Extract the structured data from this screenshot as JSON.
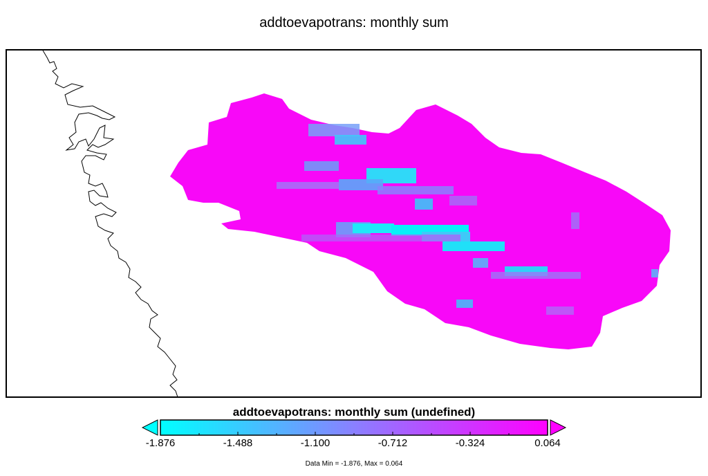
{
  "title": "addtoevapotrans: monthly sum",
  "colorbar": {
    "title": "addtoevapotrans: monthly sum (undefined)",
    "min": -1.876,
    "max": 0.064,
    "ticks": [
      "-1.876",
      "-1.488",
      "-1.100",
      "-0.712",
      "-0.324",
      "0.064"
    ],
    "colors": {
      "low": "#00ffff",
      "mid": "#8a80ff",
      "high": "#ff00ff"
    }
  },
  "data_range": "Data Min = -1.876, Max = 0.064"
}
